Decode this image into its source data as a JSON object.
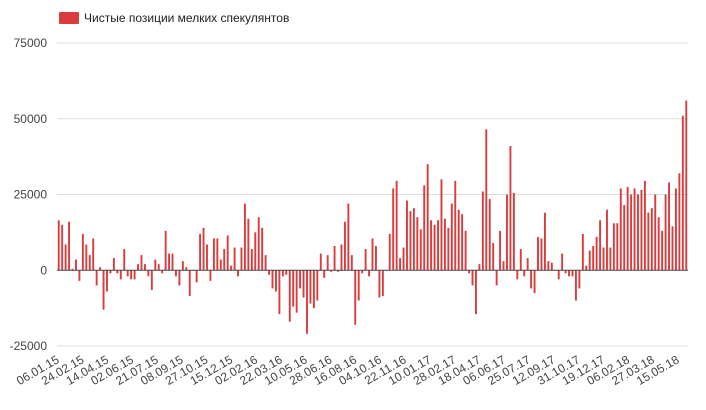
{
  "colors": {
    "bar": "#d93c3c",
    "grid": "#dddddd",
    "zero": "#444444",
    "text": "#333333"
  },
  "chart_data": {
    "type": "bar",
    "title": "",
    "xlabel": "",
    "ylabel": "",
    "legend": {
      "position": "top-left",
      "entries": [
        "Чистые позиции мелких спекулянтов"
      ]
    },
    "grid": true,
    "ylim": [
      -25000,
      75000
    ],
    "yticks": [
      -25000,
      0,
      25000,
      50000,
      75000
    ],
    "ytick_labels": [
      "-25000",
      "0",
      "25000",
      "50000",
      "75000"
    ],
    "xtick_labels": [
      "06.01.15",
      "24.02.15",
      "14.04.15",
      "02.06.15",
      "21.07.15",
      "08.09.15",
      "27.10.15",
      "15.12.15",
      "02.02.16",
      "22.03.16",
      "10.05.16",
      "28.06.16",
      "16.08.16",
      "04.10.16",
      "22.11.16",
      "10.01.17",
      "28.02.17",
      "18.04.17",
      "06.06.17",
      "25.07.17",
      "12.09.17",
      "31.10.17",
      "19.12.17",
      "06.02.18",
      "27.03.18",
      "15.05.18"
    ],
    "series": [
      {
        "name": "Чистые позиции мелких спекулянтов",
        "values": [
          16500,
          15000,
          8500,
          16000,
          500,
          3500,
          -3500,
          12000,
          8500,
          5000,
          10500,
          -5000,
          1000,
          -13000,
          -7000,
          -1000,
          4000,
          -1000,
          -3000,
          7000,
          -2000,
          -3000,
          -3000,
          2000,
          5000,
          2000,
          -2000,
          -6500,
          3500,
          2000,
          -1000,
          13000,
          5500,
          5500,
          -2000,
          -5000,
          3000,
          1000,
          -8500,
          0,
          -4000,
          12000,
          14000,
          8500,
          -3500,
          10500,
          10500,
          3500,
          7000,
          11500,
          1500,
          7500,
          -2000,
          7500,
          22000,
          17000,
          7000,
          12500,
          17500,
          14000,
          5000,
          -1500,
          -6000,
          -7000,
          -14500,
          -2000,
          -1500,
          -17000,
          -12000,
          -14000,
          -6000,
          -9000,
          -21000,
          -11000,
          -12500,
          -10000,
          5500,
          -2500,
          5000,
          -500,
          8000,
          -500,
          8500,
          16000,
          22000,
          5000,
          -18000,
          -10000,
          -1000,
          7000,
          -2000,
          10500,
          8000,
          -9000,
          -8500,
          0,
          12000,
          27000,
          29500,
          4000,
          7500,
          23000,
          19500,
          20500,
          17500,
          13500,
          28000,
          35000,
          16500,
          15000,
          16500,
          30000,
          17000,
          14000,
          22000,
          29500,
          20000,
          18500,
          13000,
          -1000,
          -5000,
          -14500,
          2000,
          26000,
          46500,
          23500,
          9000,
          -5000,
          13000,
          3000,
          25000,
          41000,
          25500,
          -3000,
          7000,
          -2000,
          4000,
          -6000,
          -7500,
          11000,
          10500,
          19000,
          3000,
          2500,
          0,
          -3000,
          5500,
          -1000,
          -2000,
          -2000,
          -10000,
          -6000,
          12000,
          1500,
          6500,
          8000,
          11000,
          16500,
          7500,
          20000,
          7500,
          15500,
          15500,
          27000,
          21500,
          27500,
          25000,
          27000,
          25000,
          26500,
          29500,
          19000,
          20500,
          25000,
          17500,
          13000,
          25000,
          29000,
          14500,
          27000,
          32000,
          51000,
          56000
        ]
      }
    ]
  }
}
